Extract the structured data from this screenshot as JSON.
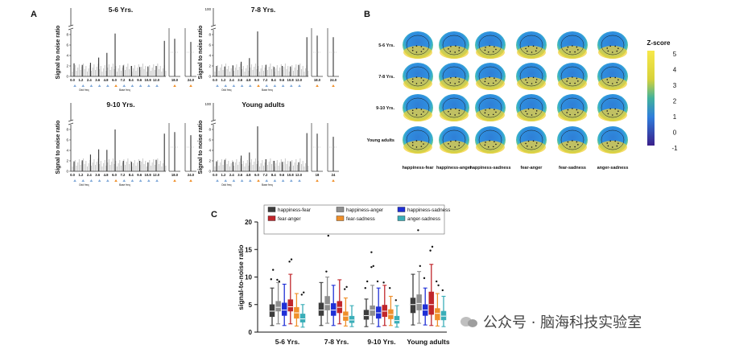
{
  "panels": {
    "A": "A",
    "B": "B",
    "C": "C"
  },
  "panelA": {
    "ylabel": "Signal to noise ratio",
    "subplots": [
      {
        "title": "5-6 Yrs.",
        "ytick_top": "",
        "ytick_lower": [
          "8",
          "6",
          "4",
          "2",
          "0"
        ],
        "peaks": [
          2.5,
          2.2,
          2.6,
          3.6,
          4.5,
          8.2,
          2.1,
          2.0,
          1.8,
          1.9,
          2.0,
          6.8
        ],
        "side": [
          7.2,
          6.6
        ]
      },
      {
        "title": "7-8 Yrs.",
        "ytick_top": "100",
        "ytick_lower": [
          "8",
          "6",
          "4",
          "2",
          "0"
        ],
        "peaks": [
          2.0,
          1.9,
          2.1,
          2.8,
          3.5,
          9.0,
          2.2,
          1.8,
          2.0,
          1.9,
          2.2,
          7.5
        ],
        "side": [
          7.8,
          7.5
        ]
      },
      {
        "title": "9-10 Yrs.",
        "ytick_top": "",
        "ytick_lower": [
          "8",
          "6",
          "4",
          "2",
          "0"
        ],
        "peaks": [
          1.9,
          2.1,
          3.2,
          4.2,
          4.1,
          8.0,
          2.0,
          1.8,
          2.0,
          1.7,
          2.2,
          7.2
        ],
        "side": [
          7.5,
          6.9
        ]
      },
      {
        "title": "Young adults",
        "ytick_top": "100",
        "ytick_lower": [
          "8",
          "6",
          "4",
          "2",
          "0"
        ],
        "peaks": [
          1.9,
          2.2,
          1.8,
          3.0,
          3.6,
          9.0,
          2.3,
          2.0,
          1.8,
          1.9,
          1.7,
          7.3
        ],
        "side": [
          7.2,
          6.6
        ]
      }
    ],
    "xticks": [
      "0.0",
      "1.2",
      "2.4",
      "3.6",
      "4.8",
      "6.0",
      "7.2",
      "8.4",
      "9.6",
      "10.8",
      "12.0"
    ],
    "side_ticks": [
      "18.0",
      "24.0"
    ],
    "side_ticks_alt": [
      "18",
      "24"
    ],
    "arrow_labels": [
      "Odd freq",
      "Base freq"
    ]
  },
  "panelB": {
    "row_labels": [
      "5-6 Yrs.",
      "7-8 Yrs.",
      "9-10 Yrs.",
      "Young adults"
    ],
    "col_labels": [
      "happiness-fear",
      "happiness-anger",
      "happiness-sadness",
      "fear-anger",
      "fear-sadness",
      "anger-sadness"
    ],
    "colorbar_title": "Z-score",
    "colorbar_ticks": [
      "5",
      "4",
      "3",
      "2",
      "1",
      "0",
      "-1"
    ]
  },
  "colors": {
    "happiness-fear": "#3d3d3d",
    "happiness-anger": "#8e8e8e",
    "happiness-sadness": "#1f2fd6",
    "fear-anger": "#c0262b",
    "fear-sadness": "#ef8f2a",
    "anger-sadness": "#3aaeb8"
  },
  "chart_data": {
    "type": "box",
    "title": "",
    "xlabel": "",
    "ylabel": "signal-to-noise ratio",
    "ylim": [
      0,
      20
    ],
    "yticks": [
      "0",
      "5",
      "10",
      "15",
      "20"
    ],
    "categories": [
      "5-6 Yrs.",
      "7-8 Yrs.",
      "9-10 Yrs.",
      "Young adults"
    ],
    "legend": [
      "happiness-fear",
      "happiness-anger",
      "happiness-sadness",
      "fear-anger",
      "fear-sadness",
      "anger-sadness"
    ],
    "series": [
      {
        "name": "happiness-fear",
        "boxes": [
          {
            "min": 1.2,
            "q1": 2.8,
            "median": 3.8,
            "q3": 5.0,
            "max": 8.0,
            "outliers": [
              9.6,
              11.3
            ]
          },
          {
            "min": 1.2,
            "q1": 3.0,
            "median": 4.0,
            "q3": 5.3,
            "max": 9.0,
            "outliers": []
          },
          {
            "min": 1.0,
            "q1": 2.3,
            "median": 3.0,
            "q3": 4.0,
            "max": 6.0,
            "outliers": [
              8.0,
              9.2
            ]
          },
          {
            "min": 1.3,
            "q1": 3.5,
            "median": 5.0,
            "q3": 6.2,
            "max": 10.5,
            "outliers": []
          }
        ]
      },
      {
        "name": "happiness-anger",
        "boxes": [
          {
            "min": 1.5,
            "q1": 3.8,
            "median": 4.5,
            "q3": 5.6,
            "max": 9.0,
            "outliers": [
              9.5,
              9.2
            ]
          },
          {
            "min": 1.6,
            "q1": 4.0,
            "median": 5.0,
            "q3": 6.5,
            "max": 10.0,
            "outliers": [
              11.0,
              17.5
            ]
          },
          {
            "min": 1.5,
            "q1": 3.0,
            "median": 4.0,
            "q3": 4.8,
            "max": 8.5,
            "outliers": [
              11.8,
              12.0,
              14.5
            ]
          },
          {
            "min": 1.6,
            "q1": 4.0,
            "median": 5.2,
            "q3": 6.8,
            "max": 11.0,
            "outliers": [
              18.5,
              12.0
            ]
          }
        ]
      },
      {
        "name": "happiness-sadness",
        "boxes": [
          {
            "min": 1.2,
            "q1": 3.0,
            "median": 4.0,
            "q3": 5.3,
            "max": 8.7,
            "outliers": []
          },
          {
            "min": 1.2,
            "q1": 3.0,
            "median": 4.0,
            "q3": 5.2,
            "max": 8.5,
            "outliers": []
          },
          {
            "min": 1.0,
            "q1": 2.5,
            "median": 3.5,
            "q3": 4.6,
            "max": 8.0,
            "outliers": [
              9.2
            ]
          },
          {
            "min": 1.3,
            "q1": 3.0,
            "median": 4.0,
            "q3": 5.0,
            "max": 8.0,
            "outliers": [
              9.8
            ]
          }
        ]
      },
      {
        "name": "fear-anger",
        "boxes": [
          {
            "min": 1.5,
            "q1": 3.8,
            "median": 4.6,
            "q3": 5.9,
            "max": 10.5,
            "outliers": [
              12.8,
              13.2
            ]
          },
          {
            "min": 1.5,
            "q1": 3.5,
            "median": 4.5,
            "q3": 5.6,
            "max": 9.5,
            "outliers": []
          },
          {
            "min": 1.2,
            "q1": 2.8,
            "median": 3.8,
            "q3": 4.9,
            "max": 8.5,
            "outliers": [
              9.0
            ]
          },
          {
            "min": 1.2,
            "q1": 3.2,
            "median": 5.0,
            "q3": 7.3,
            "max": 12.3,
            "outliers": [
              14.8,
              15.5
            ]
          }
        ]
      },
      {
        "name": "fear-sadness",
        "boxes": [
          {
            "min": 1.1,
            "q1": 2.5,
            "median": 3.5,
            "q3": 4.5,
            "max": 7.0,
            "outliers": []
          },
          {
            "min": 1.1,
            "q1": 2.1,
            "median": 2.9,
            "q3": 3.7,
            "max": 6.2,
            "outliers": [
              7.8,
              8.2
            ]
          },
          {
            "min": 1.2,
            "q1": 2.4,
            "median": 3.2,
            "q3": 4.1,
            "max": 6.5,
            "outliers": [
              8.0
            ]
          },
          {
            "min": 1.1,
            "q1": 2.2,
            "median": 3.4,
            "q3": 4.3,
            "max": 7.0,
            "outliers": [
              9.2,
              8.5
            ]
          }
        ]
      },
      {
        "name": "anger-sadness",
        "boxes": [
          {
            "min": 0.9,
            "q1": 1.8,
            "median": 2.4,
            "q3": 3.3,
            "max": 5.0,
            "outliers": [
              6.8,
              7.2
            ]
          },
          {
            "min": 1.0,
            "q1": 1.7,
            "median": 2.2,
            "q3": 2.9,
            "max": 4.8,
            "outliers": []
          },
          {
            "min": 0.9,
            "q1": 1.6,
            "median": 2.1,
            "q3": 2.9,
            "max": 4.8,
            "outliers": [
              5.8
            ]
          },
          {
            "min": 1.0,
            "q1": 2.2,
            "median": 2.9,
            "q3": 3.8,
            "max": 6.5,
            "outliers": [
              7.6
            ]
          }
        ]
      }
    ]
  },
  "watermark": {
    "text": "公众号 · 脑海科技实验室"
  }
}
